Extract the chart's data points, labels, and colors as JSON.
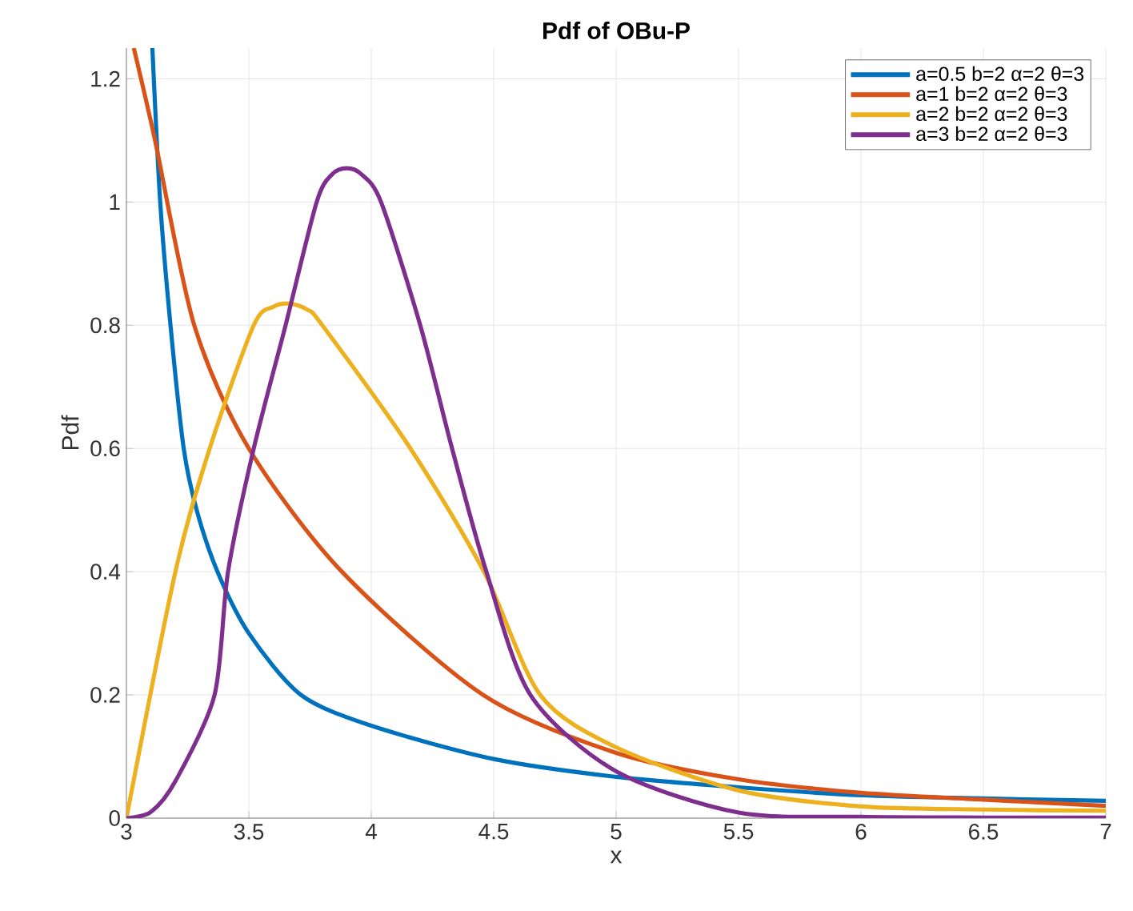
{
  "chart_data": {
    "type": "line",
    "title": "Pdf of OBu-P",
    "xlabel": "x",
    "ylabel": "Pdf",
    "xlim": [
      3,
      7
    ],
    "ylim": [
      0,
      1.25
    ],
    "xticks": [
      3,
      3.5,
      4,
      4.5,
      5,
      5.5,
      6,
      6.5,
      7
    ],
    "yticks": [
      0,
      0.2,
      0.4,
      0.6,
      0.8,
      1,
      1.2
    ],
    "grid": true,
    "legend": "top right",
    "series": [
      {
        "name": "a=0.5 b=2 α=2 θ=3",
        "color": "#0072bd",
        "x": [
          3.106,
          3.138,
          3.18,
          3.234,
          3.287,
          3.372,
          3.5,
          3.713,
          4,
          4.5,
          5,
          5.5,
          6,
          6.5,
          7
        ],
        "values": [
          1.25,
          1.0,
          0.8,
          0.6,
          0.5,
          0.4,
          0.3,
          0.2,
          0.15,
          0.096,
          0.067,
          0.05,
          0.037,
          0.032,
          0.028
        ]
      },
      {
        "name": "a=1 b=2 α=2 θ=3",
        "color": "#d95319",
        "x": [
          3.03,
          3.117,
          3.277,
          3.5,
          3.88,
          4.457,
          5,
          5.5,
          6,
          6.5,
          7
        ],
        "values": [
          1.25,
          1.1,
          0.8,
          0.6,
          0.4,
          0.2,
          0.106,
          0.063,
          0.041,
          0.03,
          0.02
        ]
      },
      {
        "name": "a=2 b=2 α=2 θ=3",
        "color": "#edb120",
        "x": [
          3,
          3.2,
          3.34,
          3.52,
          3.6,
          3.67,
          3.74,
          3.8,
          4.16,
          4.46,
          4.69,
          5,
          5.5,
          6,
          6.5,
          7
        ],
        "values": [
          0,
          0.4,
          0.6,
          0.8,
          0.83,
          0.835,
          0.825,
          0.8,
          0.6,
          0.4,
          0.2,
          0.115,
          0.045,
          0.019,
          0.014,
          0.012
        ]
      },
      {
        "name": "a=3 b=2 α=2 θ=3",
        "color": "#7e2f8e",
        "x": [
          3,
          3.1,
          3.2,
          3.36,
          3.415,
          3.52,
          3.65,
          3.777,
          3.84,
          3.9,
          3.96,
          4.04,
          4.2,
          4.33,
          4.47,
          4.65,
          5,
          5.5,
          6,
          6.5,
          7
        ],
        "values": [
          0,
          0.01,
          0.06,
          0.2,
          0.4,
          0.6,
          0.8,
          1.0,
          1.045,
          1.055,
          1.045,
          1.0,
          0.8,
          0.6,
          0.4,
          0.2,
          0.076,
          0.009,
          0.002,
          0.001,
          0.001
        ]
      }
    ]
  }
}
